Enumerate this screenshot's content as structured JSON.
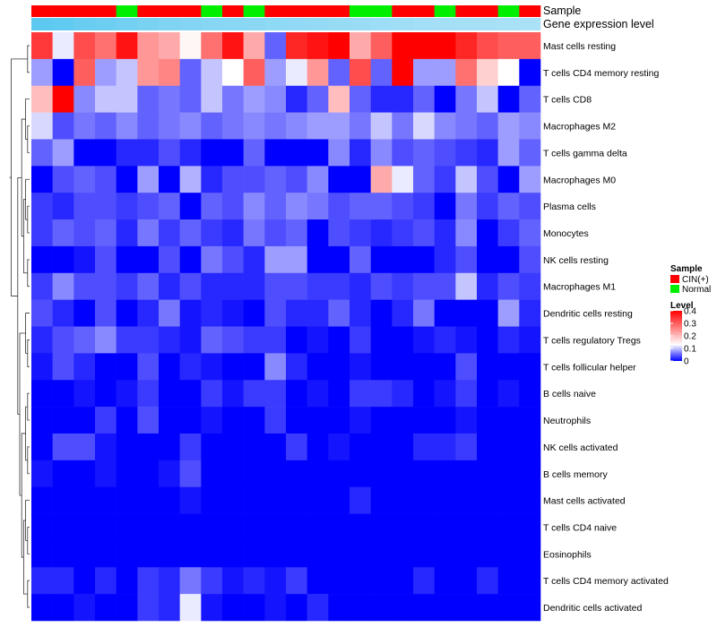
{
  "chart_data": {
    "type": "heatmap",
    "tracks": [
      {
        "name": "Sample"
      },
      {
        "name": "Gene expression level"
      }
    ],
    "sample_groups": [
      "CIN",
      "CIN",
      "CIN",
      "CIN",
      "Normal",
      "CIN",
      "CIN",
      "CIN",
      "Normal",
      "CIN",
      "Normal",
      "CIN",
      "CIN",
      "CIN",
      "CIN",
      "Normal",
      "Normal",
      "CIN",
      "CIN",
      "Normal",
      "CIN",
      "CIN",
      "Normal",
      "CIN"
    ],
    "group_colors": {
      "CIN": "#ff0000",
      "Normal": "#00ee00"
    },
    "gene_expression_track": [
      0.98,
      0.95,
      0.9,
      0.86,
      0.82,
      0.78,
      0.74,
      0.72,
      0.7,
      0.68,
      0.66,
      0.64,
      0.62,
      0.6,
      0.58,
      0.56,
      0.54,
      0.52,
      0.5,
      0.49,
      0.48,
      0.47,
      0.46,
      0.45
    ],
    "rows": [
      "Mast cells resting",
      "T cells CD4 memory resting",
      "T cells CD8",
      "Macrophages M2",
      "T cells gamma delta",
      "Macrophages M0",
      "Plasma cells",
      "Monocytes",
      "NK cells resting",
      "Macrophages M1",
      "Dendritic cells resting",
      "T cells regulatory  Tregs",
      "T cells follicular helper",
      "B cells naive",
      "Neutrophils",
      "NK cells activated",
      "B cells memory",
      "Mast cells activated",
      "T cells CD4 naive",
      "Eosinophils",
      "T cells CD4 memory activated",
      "Dendritic cells activated"
    ],
    "values": [
      [
        0.34,
        0.12,
        0.32,
        0.28,
        0.38,
        0.24,
        0.22,
        0.14,
        0.28,
        0.38,
        0.22,
        0.05,
        0.36,
        0.38,
        0.4,
        0.22,
        0.3,
        0.4,
        0.4,
        0.4,
        0.36,
        0.32,
        0.3,
        0.3
      ],
      [
        0.08,
        0.0,
        0.3,
        0.08,
        0.1,
        0.24,
        0.26,
        0.05,
        0.1,
        0.13,
        0.3,
        0.08,
        0.12,
        0.24,
        0.05,
        0.32,
        0.05,
        0.4,
        0.08,
        0.08,
        0.28,
        0.18,
        0.13,
        0.0
      ],
      [
        0.2,
        0.4,
        0.07,
        0.1,
        0.1,
        0.05,
        0.06,
        0.05,
        0.1,
        0.06,
        0.08,
        0.07,
        0.02,
        0.05,
        0.2,
        0.05,
        0.02,
        0.02,
        0.05,
        0.0,
        0.06,
        0.1,
        0.0,
        0.05
      ],
      [
        0.11,
        0.04,
        0.06,
        0.05,
        0.07,
        0.05,
        0.06,
        0.07,
        0.05,
        0.06,
        0.07,
        0.06,
        0.07,
        0.08,
        0.08,
        0.06,
        0.1,
        0.06,
        0.11,
        0.07,
        0.06,
        0.05,
        0.08,
        0.07
      ],
      [
        0.05,
        0.08,
        0.0,
        0.0,
        0.02,
        0.02,
        0.04,
        0.02,
        0.0,
        0.0,
        0.05,
        0.0,
        0.0,
        0.0,
        0.07,
        0.02,
        0.07,
        0.04,
        0.05,
        0.04,
        0.03,
        0.02,
        0.08,
        0.05
      ],
      [
        0.0,
        0.04,
        0.05,
        0.04,
        0.0,
        0.08,
        0.0,
        0.09,
        0.02,
        0.04,
        0.04,
        0.05,
        0.04,
        0.07,
        0.0,
        0.0,
        0.22,
        0.12,
        0.05,
        0.03,
        0.1,
        0.04,
        0.0,
        0.08
      ],
      [
        0.03,
        0.02,
        0.04,
        0.04,
        0.03,
        0.04,
        0.05,
        0.0,
        0.05,
        0.04,
        0.07,
        0.05,
        0.07,
        0.06,
        0.04,
        0.05,
        0.05,
        0.04,
        0.03,
        0.0,
        0.06,
        0.03,
        0.05,
        0.04
      ],
      [
        0.03,
        0.05,
        0.04,
        0.05,
        0.02,
        0.06,
        0.03,
        0.05,
        0.03,
        0.02,
        0.06,
        0.04,
        0.05,
        0.0,
        0.04,
        0.03,
        0.02,
        0.03,
        0.04,
        0.02,
        0.07,
        0.0,
        0.03,
        0.05
      ],
      [
        0.0,
        0.0,
        0.01,
        0.04,
        0.0,
        0.0,
        0.04,
        0.0,
        0.06,
        0.04,
        0.02,
        0.08,
        0.08,
        0.0,
        0.0,
        0.05,
        0.0,
        0.0,
        0.0,
        0.02,
        0.04,
        0.0,
        0.0,
        0.04
      ],
      [
        0.03,
        0.07,
        0.04,
        0.04,
        0.03,
        0.05,
        0.02,
        0.04,
        0.02,
        0.02,
        0.02,
        0.04,
        0.04,
        0.03,
        0.03,
        0.02,
        0.04,
        0.03,
        0.04,
        0.04,
        0.1,
        0.02,
        0.04,
        0.03
      ],
      [
        0.04,
        0.02,
        0.0,
        0.04,
        0.0,
        0.02,
        0.06,
        0.01,
        0.02,
        0.01,
        0.0,
        0.04,
        0.02,
        0.02,
        0.05,
        0.02,
        0.0,
        0.02,
        0.06,
        0.0,
        0.0,
        0.0,
        0.08,
        0.02
      ],
      [
        0.02,
        0.04,
        0.05,
        0.07,
        0.03,
        0.03,
        0.02,
        0.01,
        0.05,
        0.04,
        0.03,
        0.03,
        0.0,
        0.01,
        0.0,
        0.03,
        0.0,
        0.0,
        0.01,
        0.02,
        0.01,
        0.0,
        0.02,
        0.01
      ],
      [
        0.01,
        0.04,
        0.02,
        0.0,
        0.0,
        0.04,
        0.0,
        0.02,
        0.01,
        0.0,
        0.0,
        0.07,
        0.02,
        0.0,
        0.0,
        0.01,
        0.0,
        0.0,
        0.0,
        0.0,
        0.04,
        0.0,
        0.0,
        0.0
      ],
      [
        0.0,
        0.0,
        0.01,
        0.0,
        0.01,
        0.03,
        0.0,
        0.0,
        0.03,
        0.01,
        0.03,
        0.03,
        0.0,
        0.01,
        0.0,
        0.03,
        0.03,
        0.02,
        0.0,
        0.01,
        0.03,
        0.0,
        0.01,
        0.0
      ],
      [
        0.0,
        0.0,
        0.0,
        0.03,
        0.0,
        0.04,
        0.0,
        0.0,
        0.01,
        0.0,
        0.0,
        0.03,
        0.0,
        0.0,
        0.0,
        0.01,
        0.0,
        0.0,
        0.0,
        0.0,
        0.01,
        0.0,
        0.0,
        0.0
      ],
      [
        0.0,
        0.04,
        0.04,
        0.01,
        0.0,
        0.0,
        0.0,
        0.03,
        0.0,
        0.0,
        0.0,
        0.0,
        0.03,
        0.0,
        0.01,
        0.0,
        0.0,
        0.0,
        0.02,
        0.02,
        0.03,
        0.0,
        0.0,
        0.0
      ],
      [
        0.01,
        0.0,
        0.0,
        0.01,
        0.0,
        0.0,
        0.01,
        0.04,
        0.0,
        0.0,
        0.0,
        0.0,
        0.0,
        0.0,
        0.0,
        0.0,
        0.0,
        0.0,
        0.0,
        0.0,
        0.0,
        0.0,
        0.0,
        0.0
      ],
      [
        0.0,
        0.0,
        0.0,
        0.0,
        0.0,
        0.0,
        0.0,
        0.01,
        0.0,
        0.0,
        0.0,
        0.0,
        0.0,
        0.0,
        0.0,
        0.02,
        0.0,
        0.0,
        0.0,
        0.0,
        0.0,
        0.0,
        0.0,
        0.0
      ],
      [
        0.0,
        0.0,
        0.0,
        0.0,
        0.0,
        0.0,
        0.0,
        0.0,
        0.0,
        0.0,
        0.0,
        0.0,
        0.0,
        0.0,
        0.0,
        0.0,
        0.0,
        0.0,
        0.0,
        0.0,
        0.0,
        0.0,
        0.0,
        0.0
      ],
      [
        0.0,
        0.0,
        0.0,
        0.0,
        0.0,
        0.0,
        0.0,
        0.0,
        0.0,
        0.0,
        0.0,
        0.0,
        0.0,
        0.0,
        0.0,
        0.0,
        0.0,
        0.0,
        0.0,
        0.0,
        0.0,
        0.0,
        0.0,
        0.0
      ],
      [
        0.02,
        0.02,
        0.0,
        0.02,
        0.0,
        0.03,
        0.02,
        0.06,
        0.03,
        0.01,
        0.02,
        0.01,
        0.03,
        0.0,
        0.0,
        0.0,
        0.0,
        0.0,
        0.02,
        0.0,
        0.0,
        0.02,
        0.0,
        0.0
      ],
      [
        0.0,
        0.0,
        0.01,
        0.0,
        0.0,
        0.03,
        0.02,
        0.12,
        0.01,
        0.0,
        0.0,
        0.01,
        0.0,
        0.02,
        0.0,
        0.0,
        0.0,
        0.0,
        0.0,
        0.0,
        0.0,
        0.0,
        0.0,
        0.0
      ]
    ],
    "color_scale": {
      "min": 0,
      "max": 0.4,
      "stops": [
        {
          "value": 0,
          "color": "#0000ff"
        },
        {
          "value": 0.13,
          "color": "#ffffff"
        },
        {
          "value": 0.4,
          "color": "#ff0000"
        }
      ]
    },
    "legend": {
      "sample_title": "Sample",
      "sample_entries": [
        {
          "label": "CIN(+)",
          "color": "#ff0000"
        },
        {
          "label": "Normal",
          "color": "#00ee00"
        }
      ],
      "level_title": "Level",
      "level_ticks": [
        "0.4",
        "0.3",
        "0.2",
        "0.1",
        "0"
      ],
      "placement": "right"
    },
    "dendrogram": "row clustering, left side"
  }
}
